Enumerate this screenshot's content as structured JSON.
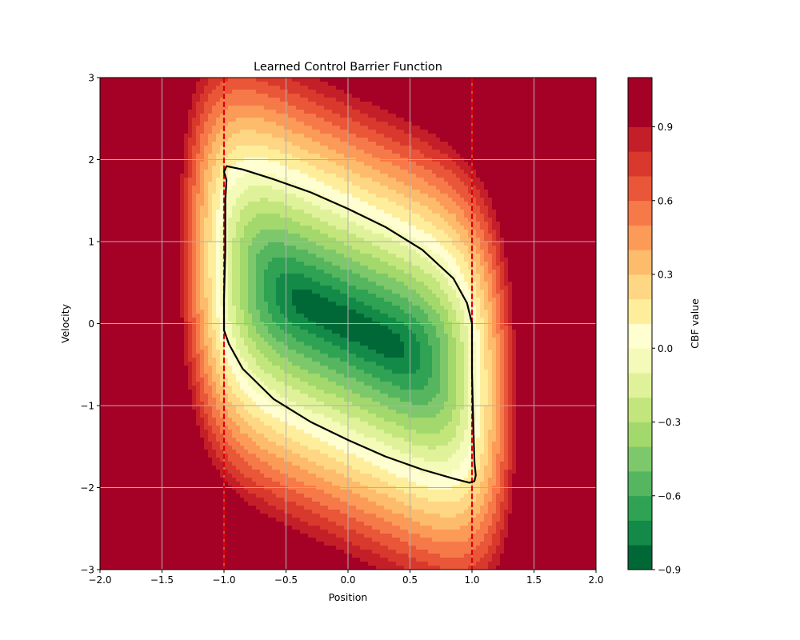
{
  "chart_data": {
    "type": "heatmap",
    "subtype": "filled-contour",
    "title": "Learned Control Barrier Function",
    "xlabel": "Position",
    "ylabel": "Velocity",
    "xlim": [
      -2.0,
      2.0
    ],
    "ylim": [
      -3,
      3
    ],
    "x_ticks": [
      {
        "value": -2.0,
        "label": "−2.0"
      },
      {
        "value": -1.5,
        "label": "−1.5"
      },
      {
        "value": -1.0,
        "label": "−1.0"
      },
      {
        "value": -0.5,
        "label": "−0.5"
      },
      {
        "value": 0.0,
        "label": "0.0"
      },
      {
        "value": 0.5,
        "label": "0.5"
      },
      {
        "value": 1.0,
        "label": "1.0"
      },
      {
        "value": 1.5,
        "label": "1.5"
      },
      {
        "value": 2.0,
        "label": "2.0"
      }
    ],
    "y_ticks": [
      {
        "value": -3,
        "label": "−3"
      },
      {
        "value": -2,
        "label": "−2"
      },
      {
        "value": -1,
        "label": "−1"
      },
      {
        "value": 0,
        "label": "0"
      },
      {
        "value": 1,
        "label": "1"
      },
      {
        "value": 2,
        "label": "2"
      },
      {
        "value": 3,
        "label": "3"
      }
    ],
    "grid": true,
    "colormap": "RdYlGn_r",
    "levels": [
      -0.9,
      -0.8,
      -0.7,
      -0.6,
      -0.5,
      -0.4,
      -0.3,
      -0.2,
      -0.1,
      0.0,
      0.1,
      0.2,
      0.3,
      0.4,
      0.5,
      0.6,
      0.7,
      0.8,
      0.9,
      1.0,
      1.1
    ],
    "level_colors": [
      "#006837",
      "#138a47",
      "#2fa253",
      "#55b65f",
      "#7dc86a",
      "#a2d86c",
      "#c3e67c",
      "#dff29a",
      "#f4fab8",
      "#fffed0",
      "#feee9c",
      "#fed684",
      "#fdbb6c",
      "#fc9a58",
      "#f67949",
      "#e95638",
      "#d9392d",
      "#c41e28",
      "#a50026",
      "#a50026"
    ],
    "colorbar": {
      "label": "CBF value",
      "ticks": [
        {
          "value": -0.9,
          "label": "−0.9"
        },
        {
          "value": -0.6,
          "label": "−0.6"
        },
        {
          "value": -0.3,
          "label": "−0.3"
        },
        {
          "value": 0.0,
          "label": "0.0"
        },
        {
          "value": 0.3,
          "label": "0.3"
        },
        {
          "value": 0.6,
          "label": "0.6"
        },
        {
          "value": 0.9,
          "label": "0.9"
        }
      ]
    },
    "zero_contour": {
      "level": 0.0,
      "color": "#000000",
      "points": [
        [
          -0.98,
          1.92
        ],
        [
          -0.85,
          1.88
        ],
        [
          -0.6,
          1.76
        ],
        [
          -0.3,
          1.6
        ],
        [
          0.0,
          1.4
        ],
        [
          0.3,
          1.18
        ],
        [
          0.6,
          0.9
        ],
        [
          0.85,
          0.55
        ],
        [
          0.96,
          0.25
        ],
        [
          1.0,
          0.0
        ],
        [
          1.0,
          -0.6
        ],
        [
          1.01,
          -1.2
        ],
        [
          1.02,
          -1.7
        ],
        [
          1.03,
          -1.85
        ],
        [
          1.02,
          -1.92
        ],
        [
          0.98,
          -1.94
        ],
        [
          0.85,
          -1.89
        ],
        [
          0.6,
          -1.78
        ],
        [
          0.3,
          -1.62
        ],
        [
          0.0,
          -1.42
        ],
        [
          -0.3,
          -1.2
        ],
        [
          -0.6,
          -0.92
        ],
        [
          -0.85,
          -0.55
        ],
        [
          -0.96,
          -0.25
        ],
        [
          -1.0,
          -0.08
        ],
        [
          -1.0,
          0.3
        ],
        [
          -0.99,
          0.9
        ],
        [
          -0.99,
          1.5
        ],
        [
          -0.98,
          1.75
        ],
        [
          -1.0,
          1.85
        ]
      ]
    },
    "boundaries": [
      {
        "x": -1.0,
        "color": "#e00000",
        "style": "dashed"
      },
      {
        "x": 1.0,
        "color": "#e00000",
        "style": "dashed"
      }
    ]
  }
}
